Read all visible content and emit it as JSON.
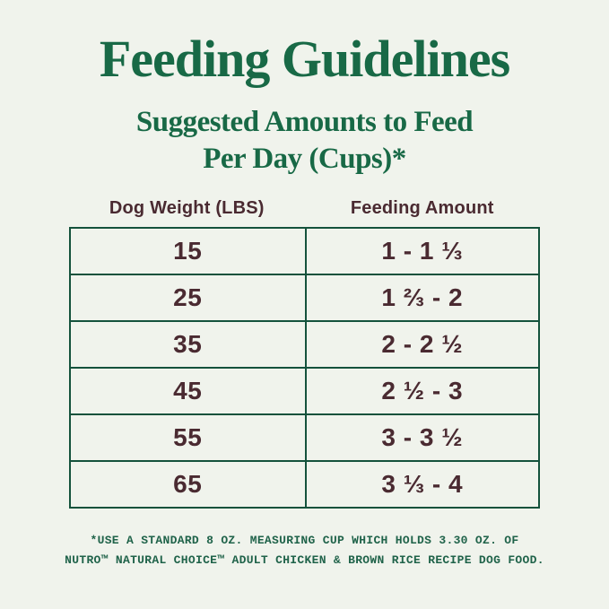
{
  "header": {
    "title": "Feeding Guidelines",
    "subtitle_line1": "Suggested Amounts to Feed",
    "subtitle_line2": "Per Day (Cups)*"
  },
  "table": {
    "columns": [
      "Dog Weight (LBS)",
      "Feeding Amount"
    ],
    "rows": [
      {
        "weight": "15",
        "amount": "1 - 1 ⅓"
      },
      {
        "weight": "25",
        "amount": "1 ⅔ - 2"
      },
      {
        "weight": "35",
        "amount": "2 - 2 ½"
      },
      {
        "weight": "45",
        "amount": "2 ½ - 3"
      },
      {
        "weight": "55",
        "amount": "3 - 3 ½"
      },
      {
        "weight": "65",
        "amount": "3 ⅓ - 4"
      }
    ]
  },
  "footnote": {
    "line1": "*USE A STANDARD 8 OZ. MEASURING CUP WHICH HOLDS 3.30 OZ. OF",
    "line2": "NUTRO™ NATURAL CHOICE™ ADULT CHICKEN & BROWN RICE RECIPE DOG FOOD."
  },
  "colors": {
    "background": "#f0f3ec",
    "heading_green": "#186946",
    "table_border_green": "#14523c",
    "value_maroon": "#4a2a31",
    "footnote_green": "#20634a"
  }
}
